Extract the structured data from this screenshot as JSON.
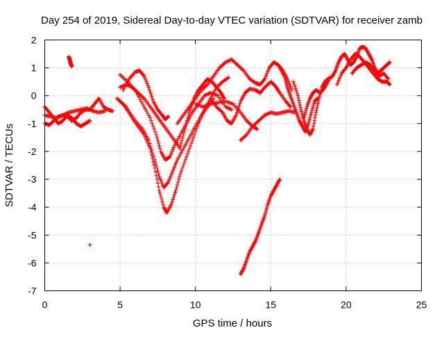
{
  "chart_data": {
    "type": "scatter",
    "title": "Day 254 of 2019, Sidereal Day-to-day VTEC variation (SDTVAR) for receiver zamb",
    "xlabel": "GPS time / hours",
    "ylabel": "SDTVAR / TECUs",
    "xlim": [
      0,
      25
    ],
    "ylim": [
      -7,
      2
    ],
    "xticks": [
      "0",
      "5",
      "10",
      "15",
      "20",
      "25"
    ],
    "yticks": [
      "-7",
      "-6",
      "-5",
      "-4",
      "-3",
      "-2",
      "-1",
      "0",
      "1",
      "2"
    ],
    "grid": true,
    "marker": "+",
    "color": "#ff0000",
    "series": [
      {
        "points": [
          [
            0,
            -0.4
          ],
          [
            0.3,
            -0.6
          ],
          [
            0.6,
            -0.8
          ],
          [
            0.9,
            -1.0
          ],
          [
            1.2,
            -0.9
          ],
          [
            1.5,
            -0.7
          ],
          [
            1.8,
            -0.8
          ],
          [
            2.1,
            -1.0
          ],
          [
            2.4,
            -1.1
          ],
          [
            2.7,
            -1.0
          ],
          [
            3.0,
            -0.9
          ]
        ]
      },
      {
        "points": [
          [
            0,
            -1.0
          ],
          [
            0.3,
            -1.05
          ],
          [
            0.6,
            -0.9
          ],
          [
            0.9,
            -0.75
          ],
          [
            1.2,
            -0.7
          ],
          [
            1.5,
            -0.75
          ],
          [
            1.8,
            -0.9
          ],
          [
            2.1,
            -0.8
          ],
          [
            2.4,
            -0.6
          ],
          [
            2.7,
            -0.5
          ],
          [
            3.0,
            -0.5
          ],
          [
            3.3,
            -0.3
          ],
          [
            3.6,
            -0.1
          ],
          [
            3.9,
            -0.4
          ],
          [
            4.2,
            -0.5
          ],
          [
            4.5,
            -0.55
          ]
        ]
      },
      {
        "points": [
          [
            0,
            -0.7
          ],
          [
            0.4,
            -0.75
          ],
          [
            0.8,
            -0.8
          ],
          [
            1.2,
            -0.7
          ],
          [
            1.6,
            -0.6
          ],
          [
            2.0,
            -0.55
          ],
          [
            2.4,
            -0.5
          ],
          [
            2.8,
            -0.45
          ],
          [
            3.2,
            -0.55
          ],
          [
            3.6,
            -0.6
          ],
          [
            4.0,
            -0.55
          ]
        ]
      },
      {
        "points": [
          [
            1.6,
            1.4
          ],
          [
            1.65,
            1.3
          ],
          [
            1.7,
            1.2
          ],
          [
            1.75,
            1.1
          ],
          [
            1.8,
            1.05
          ]
        ]
      },
      {
        "points": [
          [
            3.0,
            -5.35
          ]
        ]
      },
      {
        "points": [
          [
            5.0,
            0.75
          ],
          [
            5.5,
            0.5
          ],
          [
            6.0,
            0.2
          ],
          [
            6.5,
            -0.3
          ],
          [
            7.0,
            -0.8
          ],
          [
            7.4,
            -1.4
          ],
          [
            7.7,
            -2.0
          ],
          [
            8.0,
            -2.3
          ],
          [
            8.3,
            -2.2
          ],
          [
            8.6,
            -1.8
          ],
          [
            9.0,
            -1.4
          ],
          [
            9.4,
            -1.0
          ],
          [
            9.8,
            -0.6
          ],
          [
            10.2,
            -0.3
          ],
          [
            10.6,
            0.0
          ],
          [
            11.0,
            0.1
          ],
          [
            11.5,
            0.0
          ],
          [
            12.0,
            -0.4
          ],
          [
            12.4,
            -0.5
          ]
        ]
      },
      {
        "points": [
          [
            4.8,
            -0.1
          ],
          [
            5.2,
            -0.3
          ],
          [
            5.6,
            -0.6
          ],
          [
            6.0,
            -0.9
          ],
          [
            6.5,
            -1.2
          ],
          [
            6.9,
            -1.6
          ],
          [
            7.3,
            -2.3
          ],
          [
            7.6,
            -2.9
          ],
          [
            7.9,
            -3.3
          ],
          [
            8.2,
            -3.1
          ],
          [
            8.5,
            -2.7
          ],
          [
            8.8,
            -2.3
          ],
          [
            9.2,
            -1.9
          ],
          [
            9.6,
            -1.5
          ],
          [
            10.0,
            -1.1
          ],
          [
            10.4,
            -0.7
          ],
          [
            10.8,
            -0.4
          ],
          [
            11.2,
            -0.1
          ]
        ]
      },
      {
        "points": [
          [
            5.0,
            -0.2
          ],
          [
            5.4,
            -0.4
          ],
          [
            5.8,
            -0.8
          ],
          [
            6.2,
            -1.1
          ],
          [
            6.6,
            -1.4
          ],
          [
            7.0,
            -1.9
          ],
          [
            7.3,
            -2.6
          ],
          [
            7.6,
            -3.4
          ],
          [
            7.9,
            -4.0
          ],
          [
            8.1,
            -4.2
          ],
          [
            8.4,
            -3.9
          ],
          [
            8.7,
            -3.4
          ],
          [
            9.0,
            -2.8
          ],
          [
            9.4,
            -2.2
          ],
          [
            9.8,
            -1.6
          ],
          [
            10.2,
            -1.0
          ],
          [
            10.6,
            -0.5
          ],
          [
            11.0,
            -0.1
          ],
          [
            11.4,
            0.3
          ],
          [
            11.8,
            0.5
          ],
          [
            12.2,
            0.65
          ]
        ]
      },
      {
        "points": [
          [
            5.2,
            0.2
          ],
          [
            5.6,
            0.6
          ],
          [
            6.0,
            0.85
          ],
          [
            6.3,
            0.9
          ],
          [
            6.6,
            0.7
          ],
          [
            6.9,
            0.3
          ],
          [
            7.2,
            -0.2
          ],
          [
            7.5,
            -0.5
          ],
          [
            7.8,
            -0.7
          ],
          [
            8.0,
            -0.85
          ],
          [
            8.2,
            -0.75
          ]
        ]
      },
      {
        "points": [
          [
            5.0,
            0.3
          ],
          [
            5.4,
            0.4
          ],
          [
            5.8,
            0.3
          ],
          [
            6.2,
            0.1
          ],
          [
            6.6,
            -0.1
          ],
          [
            7.0,
            -0.4
          ],
          [
            7.4,
            -0.7
          ],
          [
            7.8,
            -1.0
          ],
          [
            8.2,
            -1.3
          ],
          [
            8.6,
            -1.6
          ],
          [
            9.0,
            -1.9
          ]
        ]
      },
      {
        "points": [
          [
            9.0,
            -1.8
          ],
          [
            9.3,
            -1.2
          ],
          [
            9.6,
            -0.6
          ],
          [
            9.9,
            -0.1
          ],
          [
            10.2,
            0.2
          ],
          [
            10.5,
            0.4
          ],
          [
            10.8,
            0.6
          ],
          [
            11.1,
            0.5
          ],
          [
            11.4,
            0.3
          ],
          [
            11.7,
            0.1
          ],
          [
            11.9,
            -0.1
          ]
        ]
      },
      {
        "points": [
          [
            8.8,
            -1.0
          ],
          [
            9.2,
            -0.7
          ],
          [
            9.6,
            -0.4
          ],
          [
            10.0,
            -0.1
          ],
          [
            10.4,
            0.2
          ],
          [
            10.8,
            0.4
          ],
          [
            11.2,
            0.7
          ],
          [
            11.6,
            1.0
          ],
          [
            12.0,
            1.2
          ],
          [
            12.4,
            1.3
          ]
        ]
      },
      {
        "points": [
          [
            12.4,
            1.3
          ],
          [
            12.8,
            1.1
          ],
          [
            13.2,
            0.9
          ],
          [
            13.6,
            0.6
          ],
          [
            14.0,
            0.45
          ],
          [
            14.3,
            0.4
          ],
          [
            14.6,
            0.6
          ],
          [
            14.9,
            1.0
          ],
          [
            15.2,
            1.2
          ],
          [
            15.5,
            1.1
          ],
          [
            15.8,
            0.9
          ],
          [
            16.1,
            0.6
          ],
          [
            16.4,
            0.2
          ]
        ]
      },
      {
        "points": [
          [
            11.0,
            -0.1
          ],
          [
            11.4,
            -0.4
          ],
          [
            11.8,
            -0.6
          ],
          [
            12.1,
            -0.9
          ],
          [
            12.4,
            -1.0
          ],
          [
            12.7,
            -0.7
          ],
          [
            13.0,
            -0.2
          ],
          [
            13.3,
            0.1
          ],
          [
            13.6,
            0.25
          ],
          [
            14.0,
            0.2
          ],
          [
            14.3,
            0.1
          ],
          [
            14.6,
            0.3
          ],
          [
            15.0,
            0.5
          ],
          [
            15.3,
            0.35
          ],
          [
            15.6,
            0.1
          ],
          [
            16.0,
            -0.2
          ],
          [
            16.3,
            -0.4
          ]
        ]
      },
      {
        "points": [
          [
            10.0,
            -0.3
          ],
          [
            10.5,
            -0.4
          ],
          [
            11.0,
            -0.3
          ],
          [
            11.5,
            -0.25
          ],
          [
            12.0,
            -0.2
          ],
          [
            12.5,
            -0.3
          ],
          [
            13.0,
            -0.6
          ],
          [
            13.4,
            -0.9
          ],
          [
            13.8,
            -1.1
          ],
          [
            14.1,
            -1.2
          ]
        ]
      },
      {
        "points": [
          [
            13.0,
            -1.6
          ],
          [
            13.4,
            -1.4
          ],
          [
            13.8,
            -1.1
          ],
          [
            14.2,
            -0.9
          ],
          [
            14.6,
            -0.7
          ],
          [
            15.0,
            -0.6
          ],
          [
            15.4,
            -0.65
          ],
          [
            15.8,
            -0.6
          ],
          [
            16.2,
            -0.55
          ],
          [
            16.6,
            -0.6
          ]
        ]
      },
      {
        "points": [
          [
            13.0,
            -6.4
          ],
          [
            13.2,
            -6.2
          ],
          [
            13.4,
            -5.9
          ],
          [
            13.6,
            -5.6
          ],
          [
            13.8,
            -5.4
          ],
          [
            14.0,
            -5.2
          ],
          [
            14.2,
            -4.9
          ],
          [
            14.4,
            -4.6
          ],
          [
            14.6,
            -4.3
          ],
          [
            14.8,
            -3.9
          ],
          [
            15.0,
            -3.6
          ],
          [
            15.2,
            -3.4
          ],
          [
            15.4,
            -3.2
          ],
          [
            15.6,
            -3.0
          ]
        ]
      },
      {
        "points": [
          [
            15.6,
            1.0
          ],
          [
            15.9,
            0.7
          ],
          [
            16.1,
            0.3
          ],
          [
            16.3,
            0.0
          ],
          [
            16.5,
            -0.3
          ],
          [
            16.7,
            -0.6
          ],
          [
            16.9,
            -0.9
          ],
          [
            17.1,
            -1.1
          ],
          [
            17.3,
            -1.3
          ],
          [
            17.5,
            -1.0
          ],
          [
            17.7,
            -0.6
          ],
          [
            17.9,
            -0.2
          ],
          [
            18.1,
            -0.1
          ]
        ]
      },
      {
        "points": [
          [
            16.5,
            0.5
          ],
          [
            16.8,
            0.0
          ],
          [
            17.0,
            -0.5
          ],
          [
            17.2,
            -0.9
          ],
          [
            17.4,
            -1.2
          ],
          [
            17.6,
            -1.4
          ],
          [
            17.8,
            -1.2
          ],
          [
            18.0,
            -0.6
          ],
          [
            18.2,
            -0.1
          ],
          [
            18.4,
            0.3
          ],
          [
            18.6,
            0.5
          ],
          [
            18.8,
            0.6
          ]
        ]
      },
      {
        "points": [
          [
            17.2,
            -0.8
          ],
          [
            17.4,
            -0.4
          ],
          [
            17.6,
            -0.1
          ],
          [
            17.8,
            0.1
          ],
          [
            18.0,
            0.2
          ],
          [
            18.3,
            0.1
          ],
          [
            18.6,
            0.3
          ],
          [
            18.9,
            0.6
          ]
        ]
      },
      {
        "points": [
          [
            18.8,
            0.6
          ],
          [
            19.1,
            0.7
          ],
          [
            19.3,
            0.9
          ],
          [
            19.5,
            1.2
          ],
          [
            19.7,
            1.4
          ],
          [
            19.9,
            1.5
          ],
          [
            20.1,
            1.3
          ],
          [
            20.3,
            1.1
          ],
          [
            20.5,
            1.2
          ],
          [
            20.7,
            1.4
          ],
          [
            20.9,
            1.7
          ],
          [
            21.1,
            1.75
          ],
          [
            21.3,
            1.7
          ],
          [
            21.5,
            1.5
          ],
          [
            21.7,
            1.3
          ],
          [
            21.9,
            1.0
          ],
          [
            22.1,
            0.8
          ],
          [
            22.3,
            0.9
          ],
          [
            22.5,
            1.0
          ],
          [
            22.7,
            1.1
          ],
          [
            22.9,
            1.2
          ]
        ]
      },
      {
        "points": [
          [
            19.4,
            0.4
          ],
          [
            19.7,
            0.8
          ],
          [
            20.0,
            1.0
          ],
          [
            20.3,
            1.3
          ],
          [
            20.6,
            1.5
          ],
          [
            20.9,
            1.4
          ],
          [
            21.2,
            1.2
          ],
          [
            21.5,
            1.0
          ],
          [
            21.8,
            0.8
          ],
          [
            22.1,
            0.6
          ],
          [
            22.4,
            0.5
          ],
          [
            22.7,
            0.5
          ],
          [
            22.9,
            0.4
          ]
        ]
      },
      {
        "points": [
          [
            20.4,
            0.8
          ],
          [
            20.7,
            1.0
          ],
          [
            21.0,
            1.1
          ],
          [
            21.3,
            1.2
          ],
          [
            21.6,
            1.1
          ],
          [
            21.9,
            0.9
          ],
          [
            22.2,
            0.7
          ],
          [
            22.5,
            0.8
          ],
          [
            22.8,
            0.6
          ]
        ]
      }
    ]
  }
}
